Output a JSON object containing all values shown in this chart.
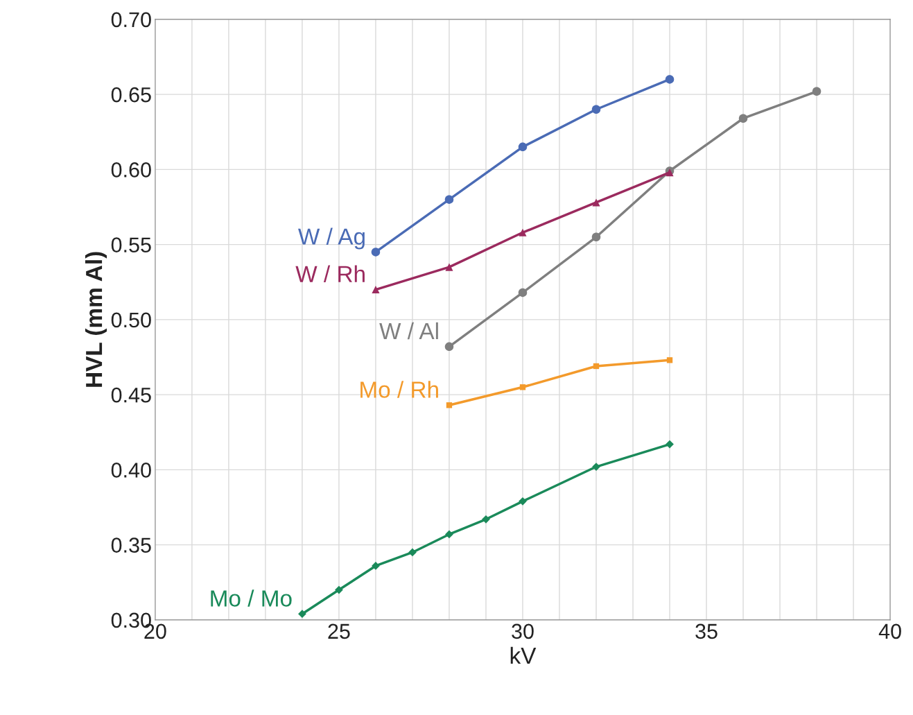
{
  "chart_data": {
    "type": "line",
    "xlabel": "kV",
    "ylabel": "HVL (mm Al)",
    "xlim": [
      20,
      40
    ],
    "ylim": [
      0.3,
      0.7
    ],
    "xticks": [
      20,
      {
        "value": 21,
        "label": null
      },
      {
        "value": 22,
        "label": null
      },
      {
        "value": 23,
        "label": null
      },
      {
        "value": 24,
        "label": null
      },
      25,
      {
        "value": 26,
        "label": null
      },
      {
        "value": 27,
        "label": null
      },
      {
        "value": 28,
        "label": null
      },
      {
        "value": 29,
        "label": null
      },
      30,
      {
        "value": 31,
        "label": null
      },
      {
        "value": 32,
        "label": null
      },
      {
        "value": 33,
        "label": null
      },
      {
        "value": 34,
        "label": null
      },
      35,
      {
        "value": 36,
        "label": null
      },
      {
        "value": 37,
        "label": null
      },
      {
        "value": 38,
        "label": null
      },
      {
        "value": 39,
        "label": null
      },
      40
    ],
    "yticks": [
      {
        "value": 0.3,
        "label": "0.30"
      },
      {
        "value": 0.35,
        "label": "0.35"
      },
      {
        "value": 0.4,
        "label": "0.40"
      },
      {
        "value": 0.45,
        "label": "0.45"
      },
      {
        "value": 0.5,
        "label": "0.50"
      },
      {
        "value": 0.55,
        "label": "0.55"
      },
      {
        "value": 0.6,
        "label": "0.60"
      },
      {
        "value": 0.65,
        "label": "0.65"
      },
      {
        "value": 0.7,
        "label": "0.70"
      }
    ],
    "grid": true,
    "legend": false,
    "series": [
      {
        "name": "W / Ag",
        "color": "#4a6bb5",
        "marker": "circle",
        "x": [
          26,
          28,
          30,
          32,
          34
        ],
        "values": [
          0.545,
          0.58,
          0.615,
          0.64,
          0.66
        ]
      },
      {
        "name": "W / Rh",
        "color": "#9b2a5e",
        "marker": "triangle",
        "x": [
          26,
          28,
          30,
          32,
          34
        ],
        "values": [
          0.52,
          0.535,
          0.558,
          0.578,
          0.598
        ]
      },
      {
        "name": "W / Al",
        "color": "#7f7f7f",
        "marker": "circle",
        "x": [
          28,
          30,
          32,
          34,
          36,
          38
        ],
        "values": [
          0.482,
          0.518,
          0.555,
          0.599,
          0.634,
          0.652
        ]
      },
      {
        "name": "Mo / Rh",
        "color": "#f39a2b",
        "marker": "square",
        "x": [
          28,
          30,
          32,
          34
        ],
        "values": [
          0.443,
          0.455,
          0.469,
          0.473
        ]
      },
      {
        "name": "Mo / Mo",
        "color": "#1a8a5a",
        "marker": "diamond",
        "x": [
          24,
          25,
          26,
          27,
          28,
          29,
          30,
          32,
          34
        ],
        "values": [
          0.304,
          0.32,
          0.336,
          0.345,
          0.357,
          0.367,
          0.379,
          0.402,
          0.417
        ]
      }
    ]
  }
}
